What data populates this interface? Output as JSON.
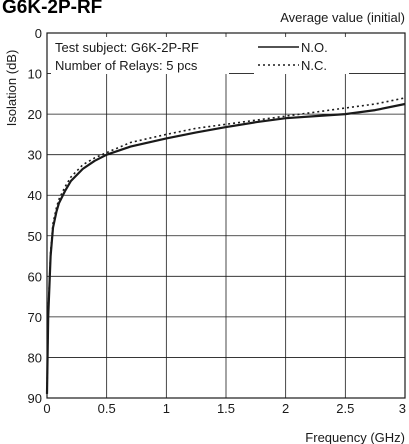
{
  "chart_data": {
    "type": "line",
    "title": "G6K-2P-RF",
    "subtitle": "Average value (initial)",
    "xlabel": "Frequency (GHz)",
    "ylabel": "Isolation (dB)",
    "xlim": [
      0,
      3
    ],
    "ylim": [
      0,
      90
    ],
    "y_inverted": true,
    "grid": true,
    "x_ticks": [
      "0",
      "0.5",
      "1",
      "1.5",
      "2",
      "2.5",
      "3"
    ],
    "y_ticks": [
      "0",
      "10",
      "20",
      "30",
      "40",
      "50",
      "60",
      "70",
      "80",
      "90"
    ],
    "annotation": {
      "line1": "Test subject: G6K-2P-RF",
      "line2": "Number of Relays: 5 pcs"
    },
    "legend_placement": "top-right",
    "series": [
      {
        "name": "N.O.",
        "style": "solid",
        "x": [
          0.0,
          0.01,
          0.03,
          0.05,
          0.08,
          0.1,
          0.15,
          0.2,
          0.3,
          0.4,
          0.5,
          0.7,
          1.0,
          1.25,
          1.5,
          1.75,
          2.0,
          2.25,
          2.5,
          2.75,
          3.0
        ],
        "y": [
          89,
          70,
          55,
          48,
          44,
          42,
          39,
          36.5,
          33.5,
          31.5,
          30,
          28,
          26,
          24.5,
          23.2,
          22,
          21,
          20.5,
          20,
          19,
          17.5
        ]
      },
      {
        "name": "N.C.",
        "style": "dotted",
        "x": [
          0.0,
          0.01,
          0.03,
          0.05,
          0.08,
          0.1,
          0.15,
          0.2,
          0.3,
          0.4,
          0.5,
          0.7,
          1.0,
          1.25,
          1.5,
          1.75,
          2.0,
          2.25,
          2.5,
          2.75,
          3.0
        ],
        "y": [
          89,
          69,
          54,
          47,
          43,
          41,
          38,
          35.5,
          32.5,
          30.8,
          29.5,
          27,
          25,
          23.5,
          22.5,
          21.5,
          20.5,
          19.5,
          18.5,
          17.5,
          16
        ]
      }
    ]
  }
}
